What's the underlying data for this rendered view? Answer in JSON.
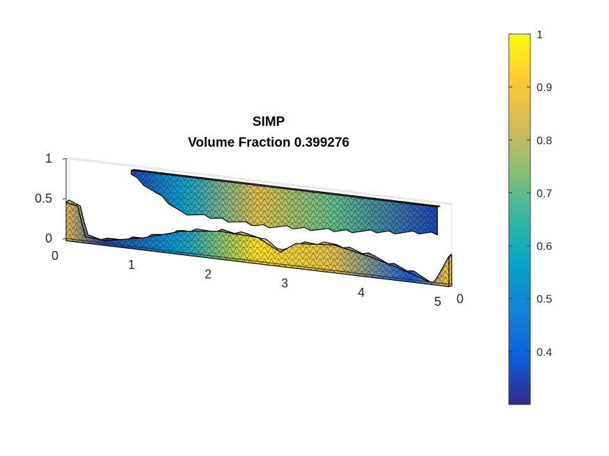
{
  "chart_data": {
    "type": "heatmap",
    "plot_kind": "3d-surface-mesh",
    "title": [
      "SIMP",
      "Volume Fraction 0.399276"
    ],
    "axes": {
      "x": {
        "range": [
          0,
          5
        ],
        "ticks": [
          "0",
          "1",
          "2",
          "3",
          "4",
          "5"
        ]
      },
      "y": {
        "range": [
          0,
          0.2
        ],
        "ticks": [
          "0"
        ]
      },
      "z": {
        "range": [
          0,
          1
        ],
        "ticks": [
          "0",
          "0.5",
          "1"
        ]
      },
      "grid": false,
      "box": true
    },
    "colorbar": {
      "colormap": "parula",
      "range": [
        0.3,
        1
      ],
      "ticks": [
        "0.4",
        "0.5",
        "0.6",
        "0.7",
        "0.8",
        "0.9",
        "1"
      ],
      "location": "right"
    },
    "structure": {
      "lower_arch_top_z": [
        [
          0.0,
          0.45
        ],
        [
          0.15,
          0.42
        ],
        [
          0.25,
          0.05
        ],
        [
          0.5,
          0.03
        ],
        [
          1.0,
          0.12
        ],
        [
          1.5,
          0.26
        ],
        [
          2.0,
          0.32
        ],
        [
          2.5,
          0.3
        ],
        [
          2.8,
          0.15
        ],
        [
          3.0,
          0.28
        ],
        [
          3.5,
          0.32
        ],
        [
          4.0,
          0.22
        ],
        [
          4.5,
          0.08
        ],
        [
          4.8,
          -0.02
        ],
        [
          5.0,
          0.35
        ]
      ],
      "upper_beam": {
        "x_range": [
          0.85,
          4.85
        ],
        "top_z": 0.95,
        "bottom_z_profile": [
          [
            0.85,
            0.9
          ],
          [
            1.5,
            0.5
          ],
          [
            2.5,
            0.45
          ],
          [
            3.5,
            0.5
          ],
          [
            4.85,
            0.62
          ]
        ]
      },
      "density_profile_lower": [
        [
          0.0,
          0.85
        ],
        [
          0.5,
          0.35
        ],
        [
          1.5,
          0.55
        ],
        [
          2.5,
          0.95
        ],
        [
          3.5,
          0.85
        ],
        [
          4.5,
          0.4
        ],
        [
          5.0,
          0.9
        ]
      ],
      "density_profile_upper": [
        [
          0.85,
          0.35
        ],
        [
          1.5,
          0.55
        ],
        [
          2.5,
          0.85
        ],
        [
          3.5,
          0.7
        ],
        [
          4.85,
          0.35
        ]
      ]
    }
  }
}
